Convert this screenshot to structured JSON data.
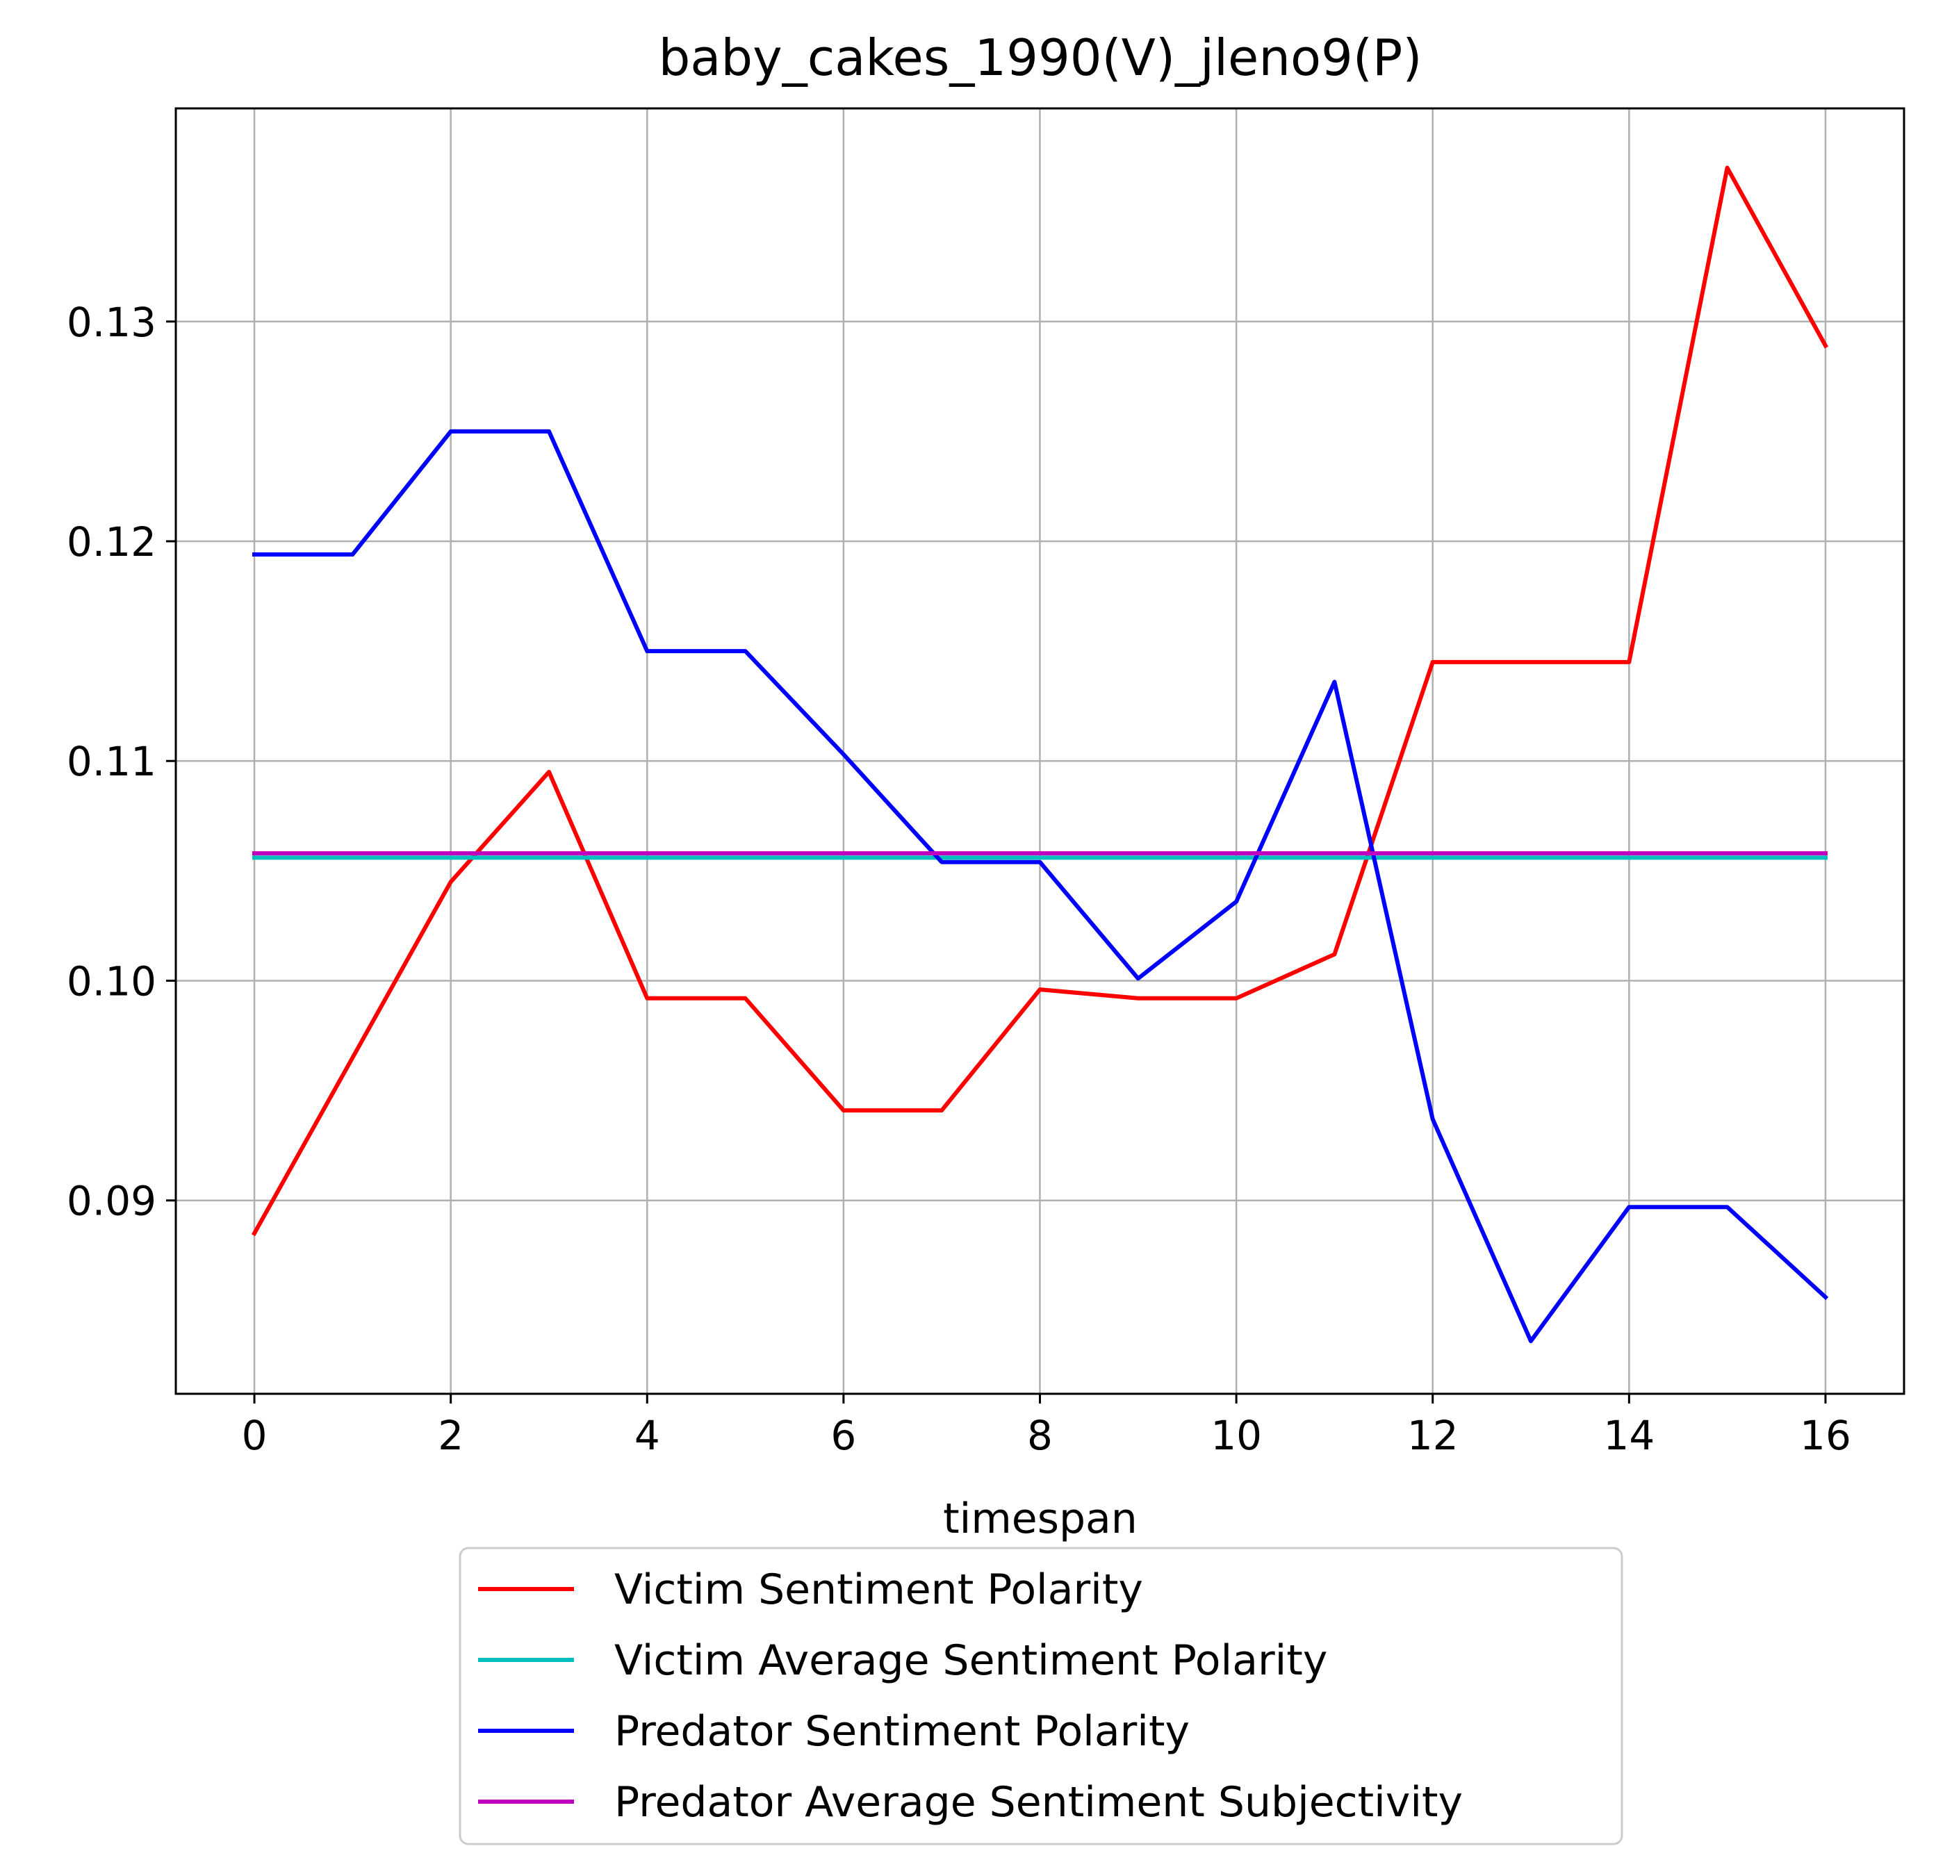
{
  "chart_data": {
    "type": "line",
    "title": "baby_cakes_1990(V)_jleno9(P)",
    "xlabel": "timespan",
    "ylabel": "",
    "xlim": [
      -0.8,
      16.8
    ],
    "ylim": [
      0.0812,
      0.1397
    ],
    "xticks": [
      0,
      2,
      4,
      6,
      8,
      10,
      12,
      14,
      16
    ],
    "xtick_labels": [
      "0",
      "2",
      "4",
      "6",
      "8",
      "10",
      "12",
      "14",
      "16"
    ],
    "yticks": [
      0.09,
      0.1,
      0.11,
      0.12,
      0.13
    ],
    "ytick_labels": [
      "0.09",
      "0.10",
      "0.11",
      "0.12",
      "0.13"
    ],
    "grid": true,
    "legend_position": "below",
    "x": [
      0,
      1,
      2,
      3,
      4,
      5,
      6,
      7,
      8,
      9,
      10,
      11,
      12,
      13,
      14,
      15,
      16
    ],
    "series": [
      {
        "name": "Victim Sentiment Polarity",
        "color": "#ff0000",
        "values": [
          0.0885,
          0.0965,
          0.1045,
          0.1095,
          0.0992,
          0.0992,
          0.0941,
          0.0941,
          0.0996,
          0.0992,
          0.0992,
          0.1012,
          0.1145,
          0.1145,
          0.1145,
          0.137,
          0.1289
        ]
      },
      {
        "name": "Victim Average Sentiment Polarity",
        "color": "#00bfbf",
        "values": [
          0.1056,
          0.1056,
          0.1056,
          0.1056,
          0.1056,
          0.1056,
          0.1056,
          0.1056,
          0.1056,
          0.1056,
          0.1056,
          0.1056,
          0.1056,
          0.1056,
          0.1056,
          0.1056,
          0.1056
        ]
      },
      {
        "name": "Predator Sentiment Polarity",
        "color": "#0000ff",
        "values": [
          0.1194,
          0.1194,
          0.125,
          0.125,
          0.115,
          0.115,
          0.1103,
          0.1054,
          0.1054,
          0.1001,
          0.1036,
          0.1136,
          0.0937,
          0.0836,
          0.0897,
          0.0897,
          0.0856
        ]
      },
      {
        "name": "Predator Average Sentiment Subjectivity",
        "color": "#bf00bf",
        "values": [
          0.1058,
          0.1058,
          0.1058,
          0.1058,
          0.1058,
          0.1058,
          0.1058,
          0.1058,
          0.1058,
          0.1058,
          0.1058,
          0.1058,
          0.1058,
          0.1058,
          0.1058,
          0.1058,
          0.1058
        ]
      }
    ]
  }
}
